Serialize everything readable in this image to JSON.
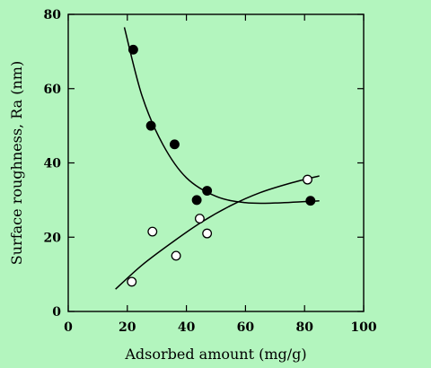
{
  "chart_data": {
    "type": "scatter",
    "xlabel": "Adsorbed amount (mg/g)",
    "ylabel": "Surface roughness, Ra (nm)",
    "xlim": [
      0,
      100
    ],
    "ylim": [
      0,
      80
    ],
    "x_ticks": [
      "0",
      "20",
      "40",
      "60",
      "80",
      "100"
    ],
    "y_ticks": [
      "0",
      "20",
      "40",
      "60",
      "80"
    ],
    "grid": false,
    "legend": "none",
    "series": [
      {
        "marker": "filled-circle",
        "color": "#000000",
        "points": [
          {
            "x": 22,
            "y": 70.5
          },
          {
            "x": 28,
            "y": 50
          },
          {
            "x": 36,
            "y": 45
          },
          {
            "x": 43.5,
            "y": 30
          },
          {
            "x": 47,
            "y": 32.5
          },
          {
            "x": 82,
            "y": 29.8
          }
        ],
        "trend": [
          {
            "x": 19,
            "y": 76.5
          },
          {
            "x": 25,
            "y": 58
          },
          {
            "x": 32,
            "y": 45
          },
          {
            "x": 40,
            "y": 36
          },
          {
            "x": 50,
            "y": 31
          },
          {
            "x": 60,
            "y": 29.3
          },
          {
            "x": 70,
            "y": 29.2
          },
          {
            "x": 85,
            "y": 29.8
          }
        ]
      },
      {
        "marker": "open-circle",
        "color": "#000000",
        "points": [
          {
            "x": 21.5,
            "y": 8
          },
          {
            "x": 28.5,
            "y": 21.5
          },
          {
            "x": 36.5,
            "y": 15
          },
          {
            "x": 44.5,
            "y": 25
          },
          {
            "x": 47,
            "y": 21
          },
          {
            "x": 81,
            "y": 35.5
          }
        ],
        "trend": [
          {
            "x": 16,
            "y": 6
          },
          {
            "x": 25,
            "y": 12.5
          },
          {
            "x": 35,
            "y": 18.5
          },
          {
            "x": 45,
            "y": 24
          },
          {
            "x": 55,
            "y": 28.5
          },
          {
            "x": 65,
            "y": 32
          },
          {
            "x": 75,
            "y": 34.5
          },
          {
            "x": 85,
            "y": 36.5
          }
        ]
      }
    ]
  }
}
